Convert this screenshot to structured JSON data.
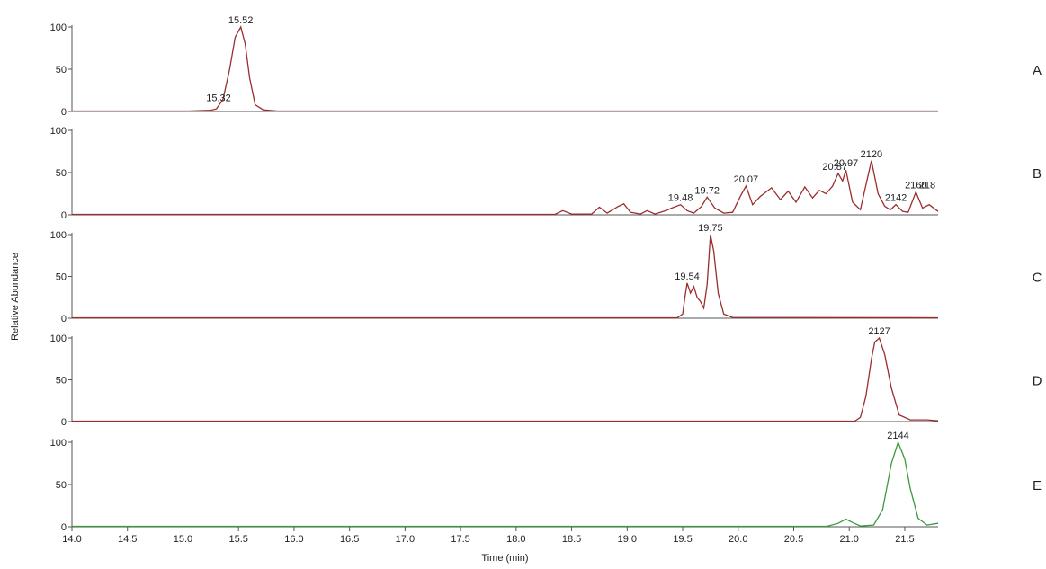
{
  "chart_data": {
    "type": "line",
    "xlabel": "Time (min)",
    "ylabel": "Relative Abundance",
    "xlim": [
      14.0,
      21.8
    ],
    "x_ticks": [
      "14.0",
      "14.5",
      "15.0",
      "15.5",
      "16.0",
      "16.5",
      "17.0",
      "17.5",
      "18.0",
      "18.5",
      "19.0",
      "19.5",
      "20.0",
      "20.5",
      "21.0",
      "21.5"
    ],
    "y_ticks": [
      "0",
      "50",
      "100"
    ],
    "ylim": [
      0,
      100
    ],
    "grid": false,
    "panels": [
      {
        "panel": "A",
        "color": "#9b2d2d",
        "points": [
          [
            14.0,
            0.5
          ],
          [
            15.05,
            0.5
          ],
          [
            15.25,
            1.5
          ],
          [
            15.3,
            3
          ],
          [
            15.36,
            14
          ],
          [
            15.42,
            50
          ],
          [
            15.47,
            88
          ],
          [
            15.52,
            100
          ],
          [
            15.56,
            80
          ],
          [
            15.6,
            40
          ],
          [
            15.65,
            8
          ],
          [
            15.72,
            2
          ],
          [
            15.85,
            0.5
          ],
          [
            21.8,
            0.5
          ]
        ],
        "peak_labels": [
          {
            "text": "15.52",
            "x": 15.52,
            "y": 100
          },
          {
            "text": "15.32",
            "x": 15.32,
            "y": 8
          }
        ]
      },
      {
        "panel": "B",
        "color": "#9b2d2d",
        "points": [
          [
            14.0,
            0.5
          ],
          [
            18.35,
            0.5
          ],
          [
            18.42,
            5
          ],
          [
            18.5,
            1
          ],
          [
            18.68,
            1
          ],
          [
            18.75,
            9
          ],
          [
            18.82,
            2
          ],
          [
            18.92,
            10
          ],
          [
            18.97,
            13
          ],
          [
            19.03,
            3
          ],
          [
            19.12,
            1
          ],
          [
            19.18,
            5
          ],
          [
            19.25,
            1
          ],
          [
            19.35,
            5
          ],
          [
            19.4,
            8
          ],
          [
            19.48,
            12
          ],
          [
            19.54,
            5
          ],
          [
            19.6,
            2
          ],
          [
            19.67,
            10
          ],
          [
            19.72,
            21
          ],
          [
            19.79,
            8
          ],
          [
            19.87,
            2
          ],
          [
            19.95,
            3
          ],
          [
            20.02,
            22
          ],
          [
            20.07,
            34
          ],
          [
            20.13,
            12
          ],
          [
            20.2,
            22
          ],
          [
            20.3,
            32
          ],
          [
            20.38,
            18
          ],
          [
            20.45,
            28
          ],
          [
            20.52,
            15
          ],
          [
            20.6,
            33
          ],
          [
            20.67,
            20
          ],
          [
            20.73,
            29
          ],
          [
            20.79,
            25
          ],
          [
            20.85,
            34
          ],
          [
            20.9,
            49
          ],
          [
            20.94,
            40
          ],
          [
            20.97,
            53
          ],
          [
            21.03,
            15
          ],
          [
            21.1,
            6
          ],
          [
            21.15,
            35
          ],
          [
            21.2,
            64
          ],
          [
            21.26,
            25
          ],
          [
            21.32,
            10
          ],
          [
            21.37,
            6
          ],
          [
            21.42,
            12
          ],
          [
            21.48,
            4
          ],
          [
            21.53,
            3
          ],
          [
            21.6,
            27
          ],
          [
            21.66,
            8
          ],
          [
            21.72,
            12
          ],
          [
            21.8,
            4
          ]
        ],
        "peak_labels": [
          {
            "text": "19.48",
            "x": 19.48,
            "y": 12
          },
          {
            "text": "19.72",
            "x": 19.72,
            "y": 21
          },
          {
            "text": "20.07",
            "x": 20.07,
            "y": 34
          },
          {
            "text": "20.87",
            "x": 20.87,
            "y": 49
          },
          {
            "text": "20.97",
            "x": 20.97,
            "y": 53
          },
          {
            "text": "2120",
            "x": 21.2,
            "y": 64
          },
          {
            "text": "2142",
            "x": 21.42,
            "y": 12
          },
          {
            "text": "2160",
            "x": 21.6,
            "y": 27
          },
          {
            "text": "218",
            "x": 21.8,
            "y": 27
          }
        ]
      },
      {
        "panel": "C",
        "color": "#9b2d2d",
        "points": [
          [
            14.0,
            0.5
          ],
          [
            19.45,
            0.5
          ],
          [
            19.5,
            5
          ],
          [
            19.52,
            25
          ],
          [
            19.54,
            42
          ],
          [
            19.57,
            30
          ],
          [
            19.6,
            38
          ],
          [
            19.63,
            25
          ],
          [
            19.66,
            20
          ],
          [
            19.69,
            12
          ],
          [
            19.72,
            40
          ],
          [
            19.75,
            100
          ],
          [
            19.78,
            80
          ],
          [
            19.82,
            30
          ],
          [
            19.87,
            5
          ],
          [
            19.95,
            1
          ],
          [
            21.8,
            0.5
          ]
        ],
        "peak_labels": [
          {
            "text": "19.54",
            "x": 19.54,
            "y": 42
          },
          {
            "text": "19.75",
            "x": 19.75,
            "y": 100
          }
        ]
      },
      {
        "panel": "D",
        "color": "#9b2d2d",
        "points": [
          [
            14.0,
            0.5
          ],
          [
            21.05,
            0.5
          ],
          [
            21.1,
            5
          ],
          [
            21.15,
            30
          ],
          [
            21.2,
            75
          ],
          [
            21.23,
            95
          ],
          [
            21.27,
            100
          ],
          [
            21.32,
            80
          ],
          [
            21.38,
            40
          ],
          [
            21.45,
            8
          ],
          [
            21.55,
            2
          ],
          [
            21.7,
            2
          ],
          [
            21.8,
            1
          ]
        ],
        "peak_labels": [
          {
            "text": "2127",
            "x": 21.27,
            "y": 100
          }
        ]
      },
      {
        "panel": "E",
        "color": "#3a9a3a",
        "points": [
          [
            14.0,
            0.5
          ],
          [
            20.8,
            0.5
          ],
          [
            20.9,
            4
          ],
          [
            20.97,
            9
          ],
          [
            21.03,
            5
          ],
          [
            21.1,
            1
          ],
          [
            21.22,
            2
          ],
          [
            21.3,
            20
          ],
          [
            21.38,
            75
          ],
          [
            21.44,
            100
          ],
          [
            21.5,
            80
          ],
          [
            21.55,
            45
          ],
          [
            21.62,
            10
          ],
          [
            21.7,
            2
          ],
          [
            21.8,
            4
          ]
        ],
        "peak_labels": [
          {
            "text": "2144",
            "x": 21.44,
            "y": 100
          }
        ]
      }
    ]
  }
}
